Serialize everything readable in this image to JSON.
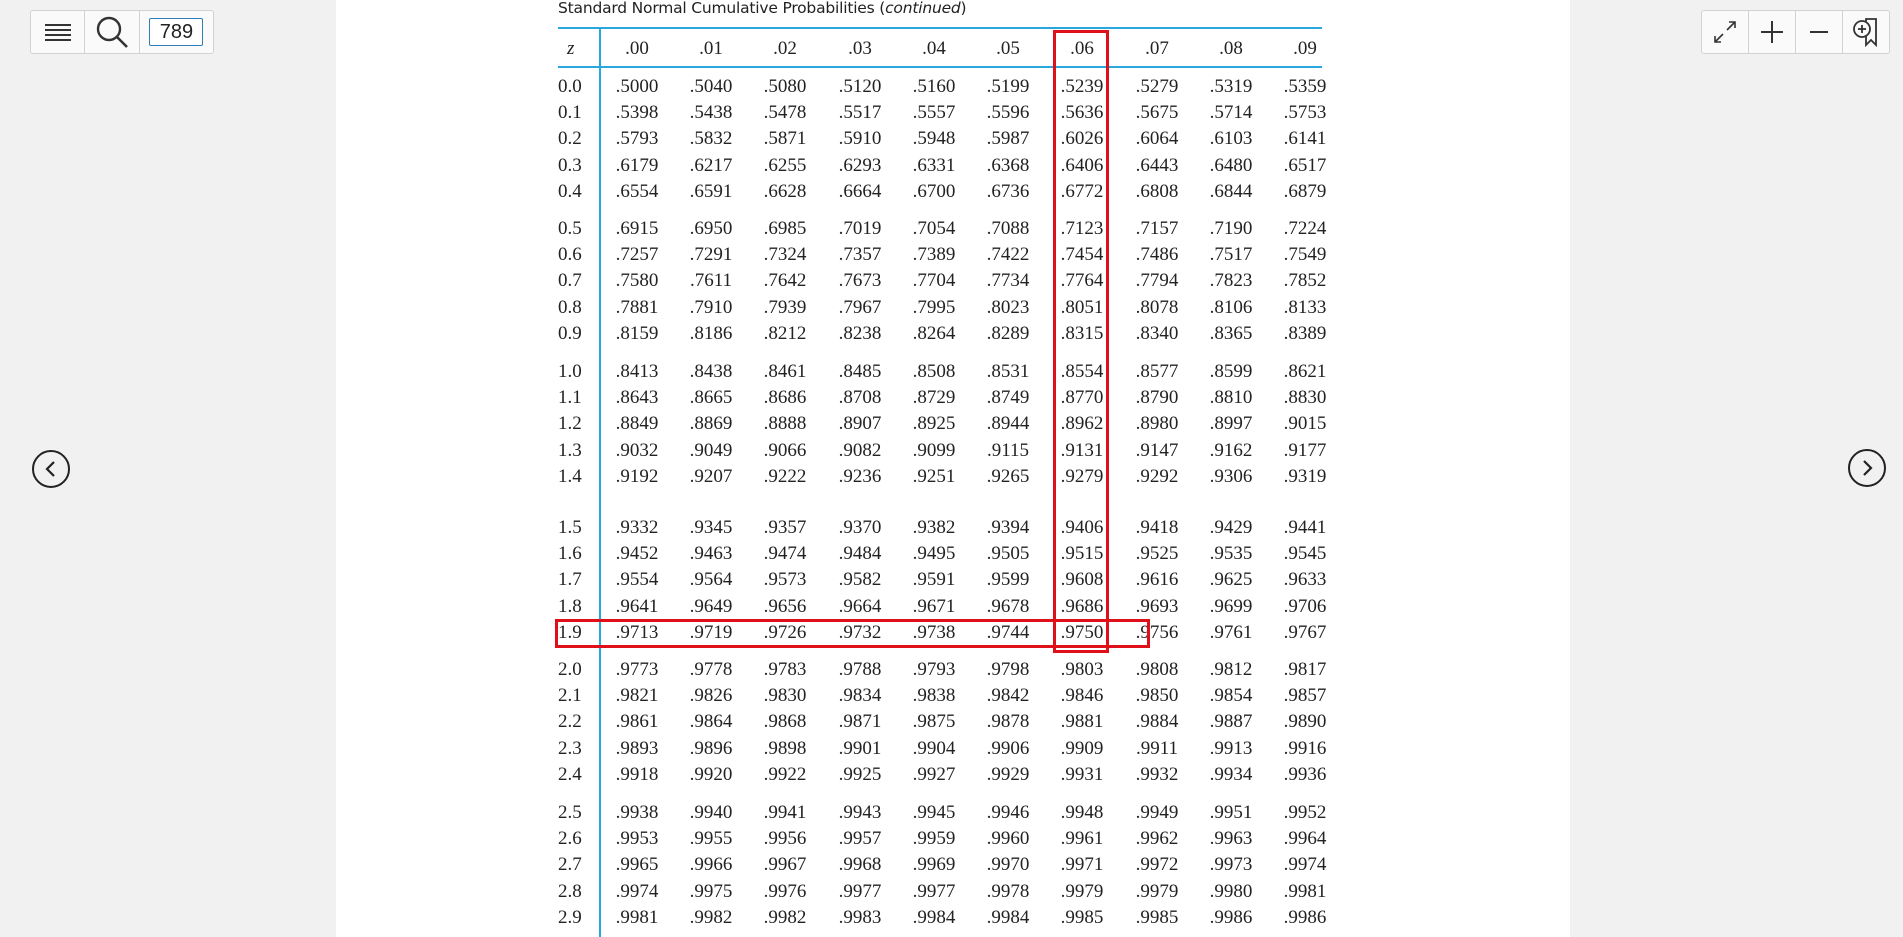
{
  "toolbar": {
    "menu_icon": "hamburger-menu-icon",
    "search_icon": "search-icon",
    "page_number": "789",
    "right_icons": [
      "fullscreen-icon",
      "zoom-in-icon",
      "zoom-out-icon",
      "bookmark-add-icon"
    ]
  },
  "navigation": {
    "prev_icon": "chevron-left-icon",
    "next_icon": "chevron-right-icon"
  },
  "table": {
    "caption_text": "Standard Normal Cumulative Probabilities (",
    "caption_italic": "continued",
    "caption_close": ")",
    "z_header": "z",
    "columns": [
      ".00",
      ".01",
      ".02",
      ".03",
      ".04",
      ".05",
      ".06",
      ".07",
      ".08",
      ".09"
    ],
    "highlight_column": ".06",
    "highlight_row": "1.9",
    "highlight_color": "#e0101a",
    "rule_color": "#29a8df",
    "groups": [
      [
        {
          "z": "0.0",
          "values": [
            ".5000",
            ".5040",
            ".5080",
            ".5120",
            ".5160",
            ".5199",
            ".5239",
            ".5279",
            ".5319",
            ".5359"
          ]
        },
        {
          "z": "0.1",
          "values": [
            ".5398",
            ".5438",
            ".5478",
            ".5517",
            ".5557",
            ".5596",
            ".5636",
            ".5675",
            ".5714",
            ".5753"
          ]
        },
        {
          "z": "0.2",
          "values": [
            ".5793",
            ".5832",
            ".5871",
            ".5910",
            ".5948",
            ".5987",
            ".6026",
            ".6064",
            ".6103",
            ".6141"
          ]
        },
        {
          "z": "0.3",
          "values": [
            ".6179",
            ".6217",
            ".6255",
            ".6293",
            ".6331",
            ".6368",
            ".6406",
            ".6443",
            ".6480",
            ".6517"
          ]
        },
        {
          "z": "0.4",
          "values": [
            ".6554",
            ".6591",
            ".6628",
            ".6664",
            ".6700",
            ".6736",
            ".6772",
            ".6808",
            ".6844",
            ".6879"
          ]
        }
      ],
      [
        {
          "z": "0.5",
          "values": [
            ".6915",
            ".6950",
            ".6985",
            ".7019",
            ".7054",
            ".7088",
            ".7123",
            ".7157",
            ".7190",
            ".7224"
          ]
        },
        {
          "z": "0.6",
          "values": [
            ".7257",
            ".7291",
            ".7324",
            ".7357",
            ".7389",
            ".7422",
            ".7454",
            ".7486",
            ".7517",
            ".7549"
          ]
        },
        {
          "z": "0.7",
          "values": [
            ".7580",
            ".7611",
            ".7642",
            ".7673",
            ".7704",
            ".7734",
            ".7764",
            ".7794",
            ".7823",
            ".7852"
          ]
        },
        {
          "z": "0.8",
          "values": [
            ".7881",
            ".7910",
            ".7939",
            ".7967",
            ".7995",
            ".8023",
            ".8051",
            ".8078",
            ".8106",
            ".8133"
          ]
        },
        {
          "z": "0.9",
          "values": [
            ".8159",
            ".8186",
            ".8212",
            ".8238",
            ".8264",
            ".8289",
            ".8315",
            ".8340",
            ".8365",
            ".8389"
          ]
        }
      ],
      [
        {
          "z": "1.0",
          "values": [
            ".8413",
            ".8438",
            ".8461",
            ".8485",
            ".8508",
            ".8531",
            ".8554",
            ".8577",
            ".8599",
            ".8621"
          ]
        },
        {
          "z": "1.1",
          "values": [
            ".8643",
            ".8665",
            ".8686",
            ".8708",
            ".8729",
            ".8749",
            ".8770",
            ".8790",
            ".8810",
            ".8830"
          ]
        },
        {
          "z": "1.2",
          "values": [
            ".8849",
            ".8869",
            ".8888",
            ".8907",
            ".8925",
            ".8944",
            ".8962",
            ".8980",
            ".8997",
            ".9015"
          ]
        },
        {
          "z": "1.3",
          "values": [
            ".9032",
            ".9049",
            ".9066",
            ".9082",
            ".9099",
            ".9115",
            ".9131",
            ".9147",
            ".9162",
            ".9177"
          ]
        },
        {
          "z": "1.4",
          "values": [
            ".9192",
            ".9207",
            ".9222",
            ".9236",
            ".9251",
            ".9265",
            ".9279",
            ".9292",
            ".9306",
            ".9319"
          ]
        }
      ],
      [
        {
          "z": "1.5",
          "values": [
            ".9332",
            ".9345",
            ".9357",
            ".9370",
            ".9382",
            ".9394",
            ".9406",
            ".9418",
            ".9429",
            ".9441"
          ]
        },
        {
          "z": "1.6",
          "values": [
            ".9452",
            ".9463",
            ".9474",
            ".9484",
            ".9495",
            ".9505",
            ".9515",
            ".9525",
            ".9535",
            ".9545"
          ]
        },
        {
          "z": "1.7",
          "values": [
            ".9554",
            ".9564",
            ".9573",
            ".9582",
            ".9591",
            ".9599",
            ".9608",
            ".9616",
            ".9625",
            ".9633"
          ]
        },
        {
          "z": "1.8",
          "values": [
            ".9641",
            ".9649",
            ".9656",
            ".9664",
            ".9671",
            ".9678",
            ".9686",
            ".9693",
            ".9699",
            ".9706"
          ]
        },
        {
          "z": "1.9",
          "values": [
            ".9713",
            ".9719",
            ".9726",
            ".9732",
            ".9738",
            ".9744",
            ".9750",
            ".9756",
            ".9761",
            ".9767"
          ]
        }
      ],
      [
        {
          "z": "2.0",
          "values": [
            ".9773",
            ".9778",
            ".9783",
            ".9788",
            ".9793",
            ".9798",
            ".9803",
            ".9808",
            ".9812",
            ".9817"
          ]
        },
        {
          "z": "2.1",
          "values": [
            ".9821",
            ".9826",
            ".9830",
            ".9834",
            ".9838",
            ".9842",
            ".9846",
            ".9850",
            ".9854",
            ".9857"
          ]
        },
        {
          "z": "2.2",
          "values": [
            ".9861",
            ".9864",
            ".9868",
            ".9871",
            ".9875",
            ".9878",
            ".9881",
            ".9884",
            ".9887",
            ".9890"
          ]
        },
        {
          "z": "2.3",
          "values": [
            ".9893",
            ".9896",
            ".9898",
            ".9901",
            ".9904",
            ".9906",
            ".9909",
            ".9911",
            ".9913",
            ".9916"
          ]
        },
        {
          "z": "2.4",
          "values": [
            ".9918",
            ".9920",
            ".9922",
            ".9925",
            ".9927",
            ".9929",
            ".9931",
            ".9932",
            ".9934",
            ".9936"
          ]
        }
      ],
      [
        {
          "z": "2.5",
          "values": [
            ".9938",
            ".9940",
            ".9941",
            ".9943",
            ".9945",
            ".9946",
            ".9948",
            ".9949",
            ".9951",
            ".9952"
          ]
        },
        {
          "z": "2.6",
          "values": [
            ".9953",
            ".9955",
            ".9956",
            ".9957",
            ".9959",
            ".9960",
            ".9961",
            ".9962",
            ".9963",
            ".9964"
          ]
        },
        {
          "z": "2.7",
          "values": [
            ".9965",
            ".9966",
            ".9967",
            ".9968",
            ".9969",
            ".9970",
            ".9971",
            ".9972",
            ".9973",
            ".9974"
          ]
        },
        {
          "z": "2.8",
          "values": [
            ".9974",
            ".9975",
            ".9976",
            ".9977",
            ".9977",
            ".9978",
            ".9979",
            ".9979",
            ".9980",
            ".9981"
          ]
        },
        {
          "z": "2.9",
          "values": [
            ".9981",
            ".9982",
            ".9982",
            ".9983",
            ".9984",
            ".9984",
            ".9985",
            ".9985",
            ".9986",
            ".9986"
          ]
        }
      ]
    ]
  }
}
